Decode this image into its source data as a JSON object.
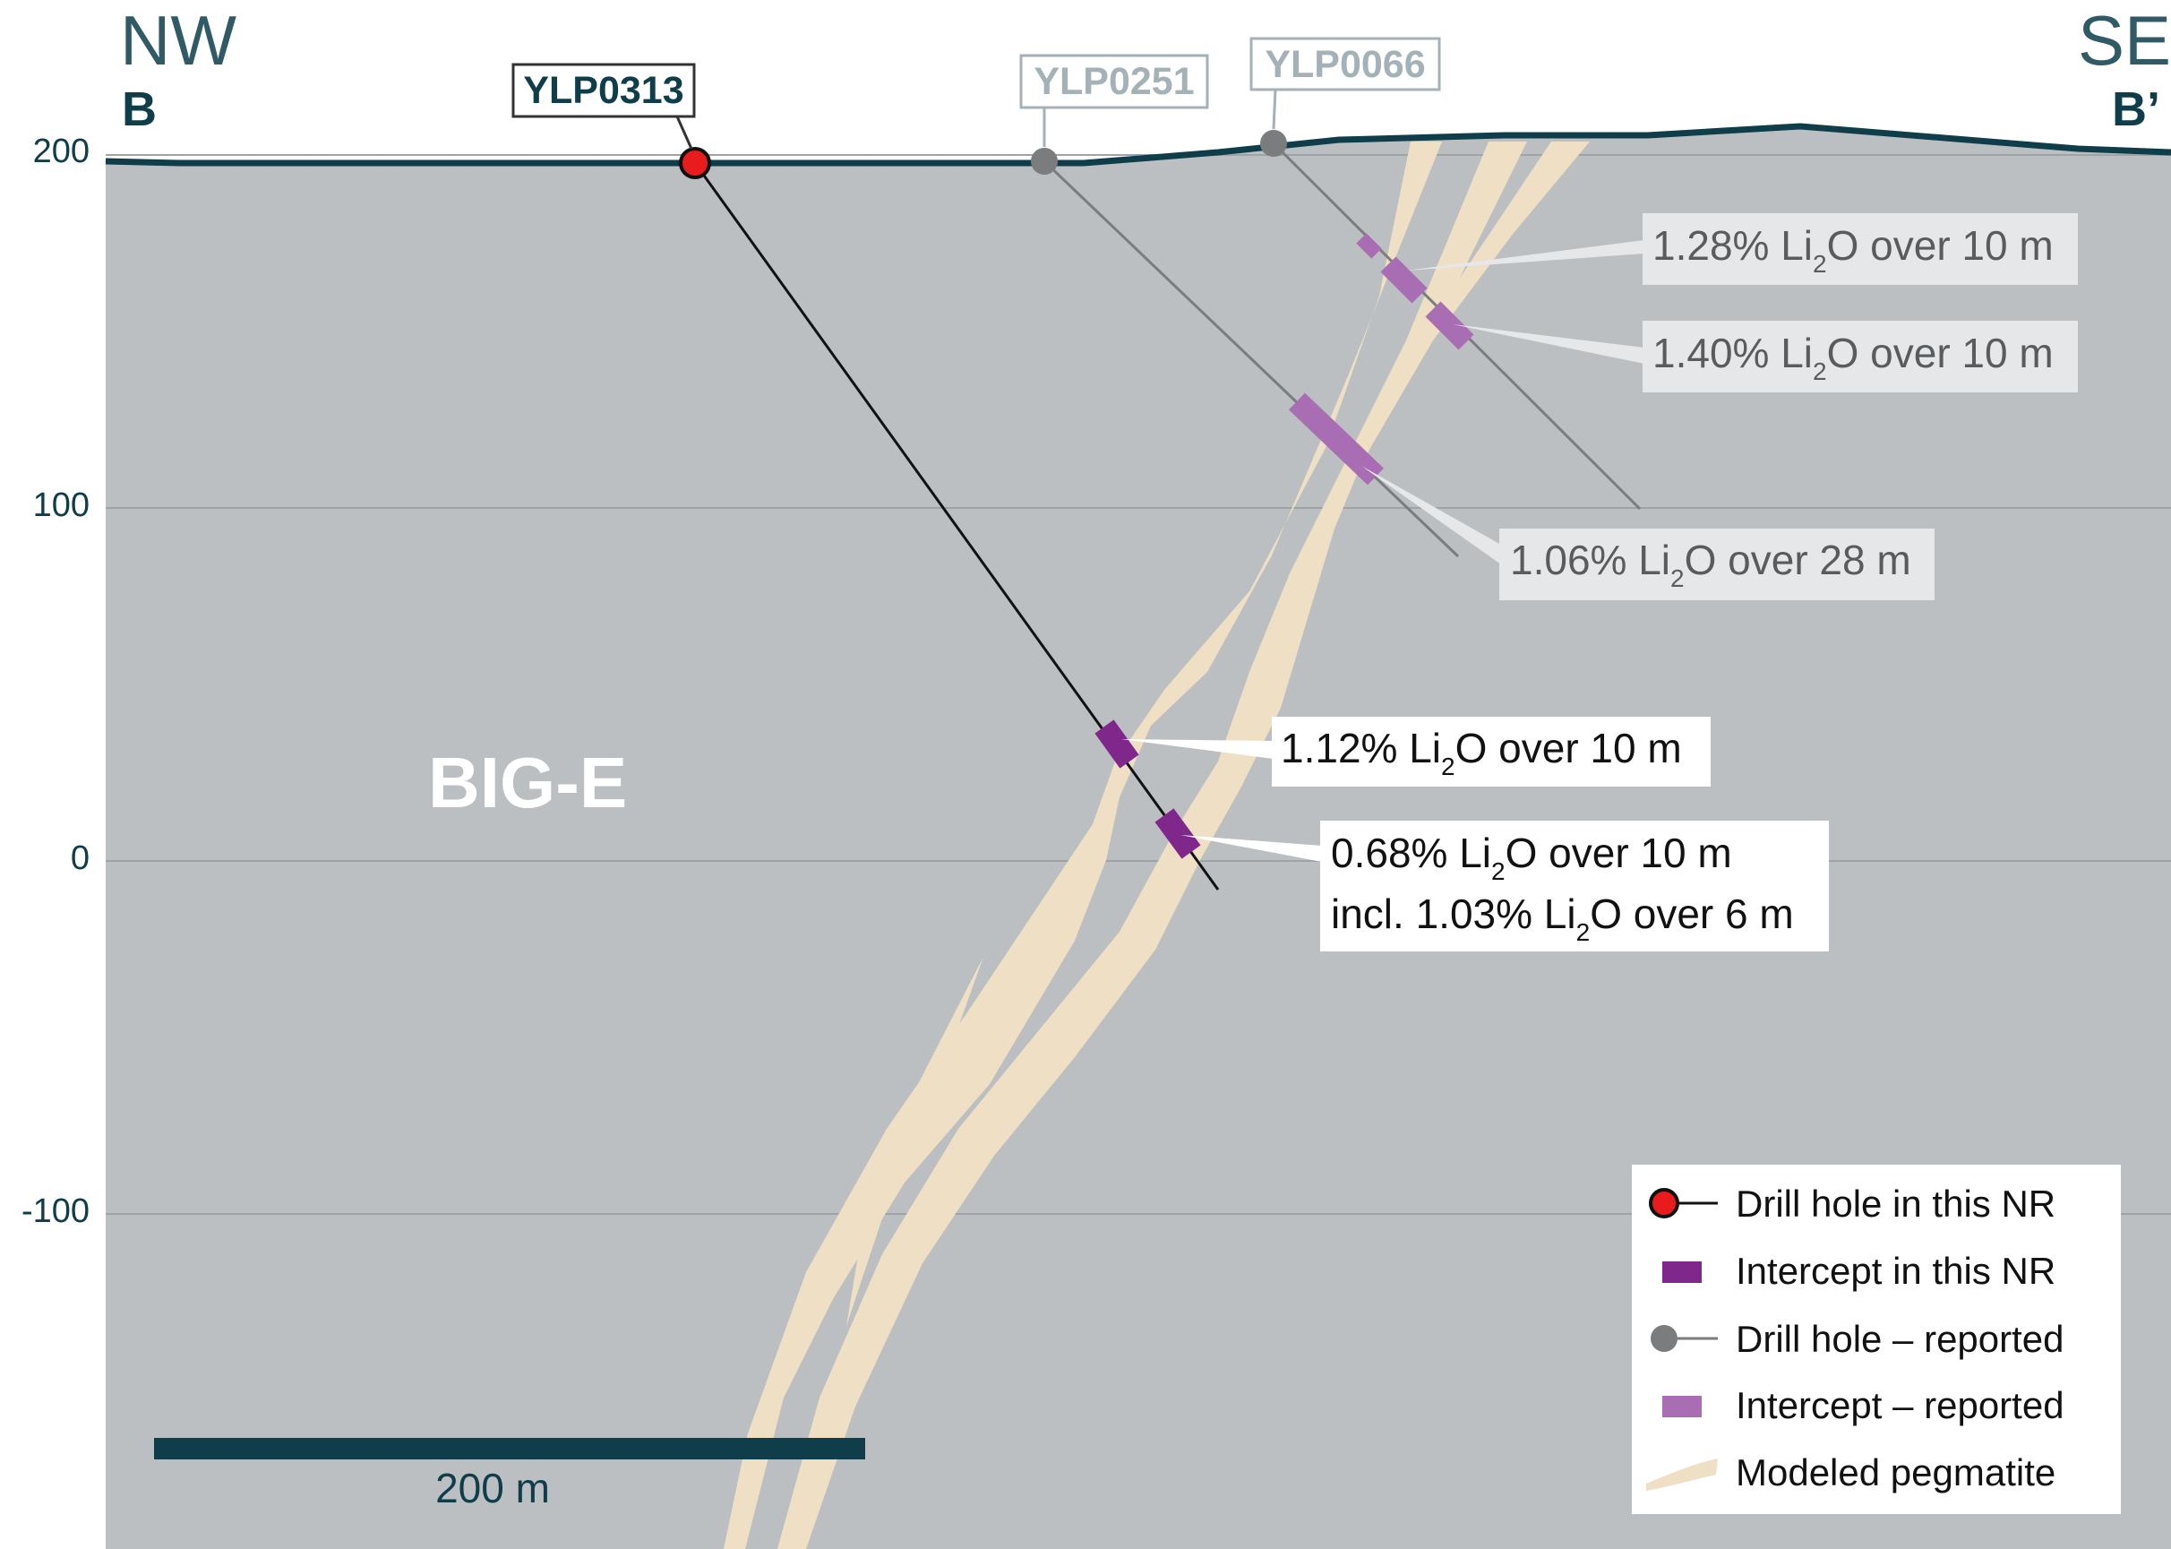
{
  "section": {
    "left_direction": "NW",
    "left_letter": "B",
    "right_direction": "SE",
    "right_letter": "B’",
    "unit_label": "BIG-E",
    "scale_bar_label": "200 m"
  },
  "elevation_axis": {
    "ticks": [
      "200",
      "100",
      "0",
      "-100"
    ]
  },
  "drill_holes": [
    {
      "id": "YLP0313",
      "status": "this-nr"
    },
    {
      "id": "YLP0251",
      "status": "reported"
    },
    {
      "id": "YLP0066",
      "status": "reported"
    }
  ],
  "intercepts": {
    "ylp0066_a": {
      "value": "1.28% Li",
      "sub": "2",
      "rest": "O over 10 m"
    },
    "ylp0066_b": {
      "value": "1.40% Li",
      "sub": "2",
      "rest": "O over 10 m"
    },
    "ylp0251": {
      "value": "1.06% Li",
      "sub": "2",
      "rest": "O over 28 m"
    },
    "ylp0313_a": {
      "value": "1.12% Li",
      "sub": "2",
      "rest": "O over 10 m"
    },
    "ylp0313_b": {
      "line1": {
        "value": "0.68% Li",
        "sub": "2",
        "rest": "O over 10 m"
      },
      "line2": {
        "value": "incl. 1.03% Li",
        "sub": "2",
        "rest": "O over 6 m"
      }
    }
  },
  "legend": {
    "drill_hole_nr": "Drill hole in this NR",
    "intercept_nr": "Intercept in this NR",
    "drill_hole_reported": "Drill hole – reported",
    "intercept_reported": "Intercept – reported",
    "pegmatite": "Modeled pegmatite"
  },
  "colors": {
    "host_rock": "#bbbfc1",
    "pegmatite": "#efe0c5",
    "topography": "#0f3d4a",
    "title_text": "#2f5a66",
    "nr_hole": "#e81c1c",
    "nr_intercept": "#80278c",
    "reported_hole": "#7a7c7e",
    "reported_intercept": "#a86db2",
    "reported_label_text": "#a4b1b6",
    "gridline": "#9ea3a6"
  }
}
